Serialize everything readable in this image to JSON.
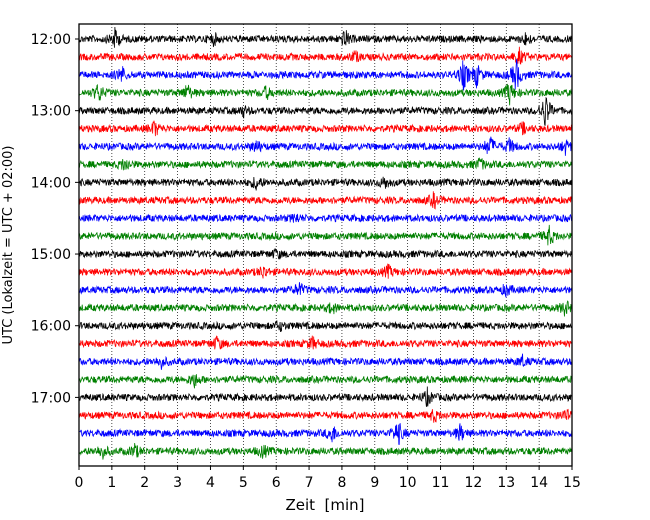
{
  "chart_data": {
    "type": "line",
    "title": "",
    "xlabel": "Zeit  [min]",
    "ylabel": "UTC (Lokalzeit = UTC + 02:00)",
    "xlim": [
      0,
      15
    ],
    "x_ticks": [
      "0",
      "1",
      "2",
      "3",
      "4",
      "5",
      "6",
      "7",
      "8",
      "9",
      "10",
      "11",
      "12",
      "13",
      "14",
      "15"
    ],
    "y_ticks": [
      "12:00",
      "13:00",
      "14:00",
      "15:00",
      "16:00",
      "17:00"
    ],
    "grid": "vertical dotted",
    "row_interval_minutes": 15,
    "row_start": "12:00",
    "colors": [
      "#000000",
      "#ff0000",
      "#0000ff",
      "#008000"
    ],
    "series": [
      {
        "row_start": "12:00",
        "color": "#000000",
        "events": [
          {
            "t": 1.1,
            "amp": 1.2
          },
          {
            "t": 4.1,
            "amp": 0.7
          },
          {
            "t": 8.1,
            "amp": 1.0
          },
          {
            "t": 13.6,
            "amp": 0.7
          }
        ]
      },
      {
        "row_start": "12:15",
        "color": "#ff0000",
        "events": [
          {
            "t": 8.4,
            "amp": 0.6
          },
          {
            "t": 13.4,
            "amp": 0.9
          }
        ]
      },
      {
        "row_start": "12:30",
        "color": "#0000ff",
        "events": [
          {
            "t": 1.3,
            "amp": 1.0
          },
          {
            "t": 11.7,
            "amp": 1.8
          },
          {
            "t": 12.1,
            "amp": 1.4
          },
          {
            "t": 13.3,
            "amp": 2.0
          }
        ]
      },
      {
        "row_start": "12:45",
        "color": "#008000",
        "events": [
          {
            "t": 0.6,
            "amp": 1.1
          },
          {
            "t": 3.3,
            "amp": 1.0
          },
          {
            "t": 5.7,
            "amp": 0.7
          },
          {
            "t": 13.1,
            "amp": 1.3
          }
        ]
      },
      {
        "row_start": "13:00",
        "color": "#000000",
        "events": [
          {
            "t": 5.0,
            "amp": 0.6
          },
          {
            "t": 14.2,
            "amp": 2.2
          }
        ]
      },
      {
        "row_start": "13:15",
        "color": "#ff0000",
        "events": [
          {
            "t": 2.3,
            "amp": 0.9
          },
          {
            "t": 13.5,
            "amp": 0.6
          }
        ]
      },
      {
        "row_start": "13:30",
        "color": "#0000ff",
        "events": [
          {
            "t": 5.4,
            "amp": 0.7
          },
          {
            "t": 12.5,
            "amp": 1.3
          },
          {
            "t": 13.1,
            "amp": 0.9
          },
          {
            "t": 14.8,
            "amp": 0.8
          }
        ]
      },
      {
        "row_start": "13:45",
        "color": "#008000",
        "events": [
          {
            "t": 1.4,
            "amp": 0.8
          },
          {
            "t": 12.2,
            "amp": 0.7
          }
        ]
      },
      {
        "row_start": "14:00",
        "color": "#000000",
        "events": [
          {
            "t": 5.4,
            "amp": 0.8
          },
          {
            "t": 9.3,
            "amp": 0.7
          }
        ]
      },
      {
        "row_start": "14:15",
        "color": "#ff0000",
        "events": [
          {
            "t": 10.8,
            "amp": 0.9
          }
        ]
      },
      {
        "row_start": "14:30",
        "color": "#0000ff",
        "events": [
          {
            "t": 6.6,
            "amp": 0.5
          }
        ]
      },
      {
        "row_start": "14:45",
        "color": "#008000",
        "events": [
          {
            "t": 14.3,
            "amp": 1.2
          }
        ]
      },
      {
        "row_start": "15:00",
        "color": "#000000",
        "events": [
          {
            "t": 6.0,
            "amp": 0.5
          }
        ]
      },
      {
        "row_start": "15:15",
        "color": "#ff0000",
        "events": [
          {
            "t": 5.6,
            "amp": 0.7
          },
          {
            "t": 9.4,
            "amp": 0.7
          }
        ]
      },
      {
        "row_start": "15:30",
        "color": "#0000ff",
        "events": [
          {
            "t": 6.7,
            "amp": 0.8
          },
          {
            "t": 13.0,
            "amp": 0.7
          }
        ]
      },
      {
        "row_start": "15:45",
        "color": "#008000",
        "events": [
          {
            "t": 7.7,
            "amp": 0.6
          },
          {
            "t": 14.8,
            "amp": 0.9
          }
        ]
      },
      {
        "row_start": "16:00",
        "color": "#000000",
        "events": [
          {
            "t": 6.1,
            "amp": 0.5
          }
        ]
      },
      {
        "row_start": "16:15",
        "color": "#ff0000",
        "events": [
          {
            "t": 4.2,
            "amp": 0.8
          },
          {
            "t": 7.1,
            "amp": 0.7
          }
        ]
      },
      {
        "row_start": "16:30",
        "color": "#0000ff",
        "events": [
          {
            "t": 2.5,
            "amp": 0.7
          },
          {
            "t": 13.5,
            "amp": 0.6
          }
        ]
      },
      {
        "row_start": "16:45",
        "color": "#008000",
        "events": [
          {
            "t": 3.5,
            "amp": 0.9
          }
        ]
      },
      {
        "row_start": "17:00",
        "color": "#000000",
        "events": [
          {
            "t": 10.6,
            "amp": 1.0
          }
        ]
      },
      {
        "row_start": "17:15",
        "color": "#ff0000",
        "events": [
          {
            "t": 10.8,
            "amp": 0.7
          },
          {
            "t": 14.8,
            "amp": 0.7
          }
        ]
      },
      {
        "row_start": "17:30",
        "color": "#0000ff",
        "events": [
          {
            "t": 7.7,
            "amp": 1.1
          },
          {
            "t": 9.7,
            "amp": 1.6
          },
          {
            "t": 11.6,
            "amp": 1.0
          }
        ]
      },
      {
        "row_start": "17:45",
        "color": "#008000",
        "events": [
          {
            "t": 0.7,
            "amp": 0.9
          },
          {
            "t": 1.7,
            "amp": 0.8
          },
          {
            "t": 5.6,
            "amp": 0.8
          }
        ]
      }
    ]
  }
}
